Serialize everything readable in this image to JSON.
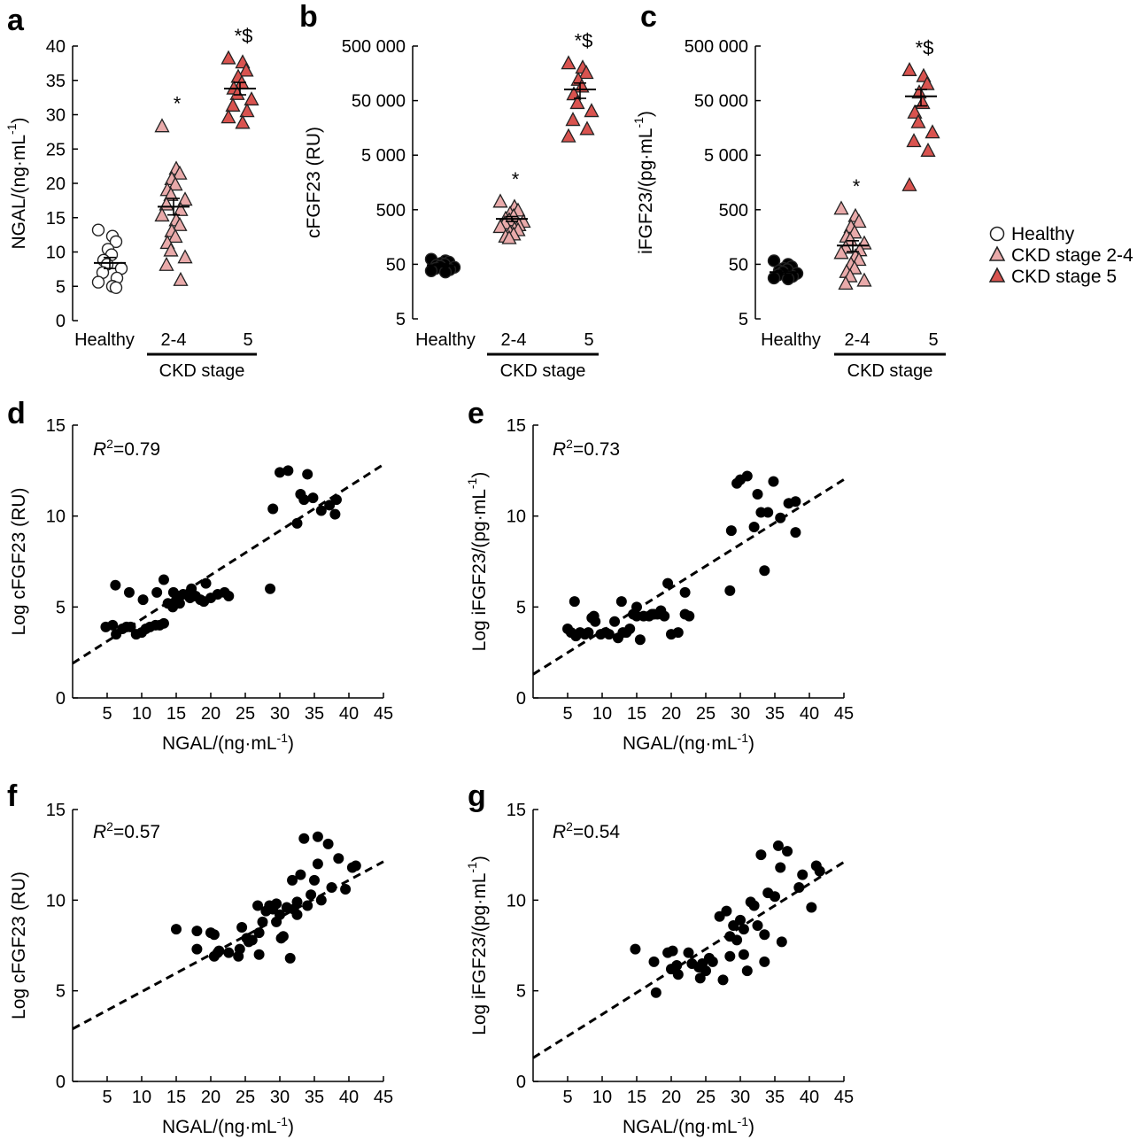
{
  "colors": {
    "healthy_fill": "#ffffff",
    "ckd24_fill": "#e9aaaa",
    "ckd5_fill": "#d9534f",
    "marker_stroke": "#222222",
    "point_fill": "#000000"
  },
  "legend": {
    "entries": [
      "Healthy",
      "CKD stage 2-4",
      "CKD stage 5"
    ]
  },
  "chart_data": [
    {
      "id": "a",
      "type": "scatter",
      "panel_label": "a",
      "ylabel": "NGAL/(ng·mL",
      "ylabel_sup": "-1",
      "ylabel_end": ")",
      "yscale": "linear",
      "ylim": [
        0,
        40
      ],
      "yticks": [
        0,
        5,
        10,
        15,
        20,
        25,
        30,
        35,
        40
      ],
      "ytick_labels": [
        "0",
        "5",
        "10",
        "15",
        "20",
        "25",
        "30",
        "35",
        "40"
      ],
      "categories": [
        "Healthy",
        "2-4",
        "5"
      ],
      "group_label": "CKD stage",
      "groups": [
        {
          "name": "Healthy",
          "marker": "circle",
          "values": [
            13.2,
            12.3,
            11.5,
            10.4,
            9.6,
            8.8,
            8.2,
            7.6,
            7.0,
            6.2,
            5.6,
            5.0,
            4.8
          ],
          "mean": 8.4,
          "sem": 0.8,
          "sig": ""
        },
        {
          "name": "CKD stage 2-4",
          "marker": "triangle",
          "values": [
            28.3,
            22.1,
            21.4,
            20.6,
            19.8,
            19.0,
            18.3,
            17.6,
            16.9,
            16.1,
            15.3,
            14.6,
            13.9,
            13.0,
            12.2,
            11.3,
            10.2,
            9.2,
            8.1,
            5.9
          ],
          "mean": 16.6,
          "sem": 1.2,
          "sig": "*"
        },
        {
          "name": "CKD stage 5",
          "marker": "triangle",
          "values": [
            38.2,
            37.6,
            36.4,
            35.5,
            34.6,
            33.8,
            33.0,
            32.2,
            31.3,
            30.5,
            29.6,
            28.8
          ],
          "mean": 33.8,
          "sem": 0.9,
          "sig": "*$"
        }
      ]
    },
    {
      "id": "b",
      "type": "scatter",
      "panel_label": "b",
      "ylabel": "cFGF23 (RU)",
      "ylabel_sup": "",
      "ylabel_end": "",
      "yscale": "log",
      "ylim": [
        5,
        500000
      ],
      "yticks": [
        5,
        50,
        500,
        5000,
        50000,
        500000
      ],
      "ytick_labels": [
        "5",
        "50",
        "500",
        "5 000",
        "50 000",
        "500 000"
      ],
      "categories": [
        "Healthy",
        "2-4",
        "5"
      ],
      "group_label": "CKD stage",
      "groups": [
        {
          "name": "Healthy",
          "marker": "circle",
          "values": [
            62,
            58,
            55,
            52,
            50,
            48,
            46,
            44,
            42,
            40,
            38,
            36
          ],
          "mean": 48,
          "sem": 3,
          "sig": ""
        },
        {
          "name": "CKD stage 2-4",
          "marker": "triangle",
          "values": [
            700,
            560,
            480,
            420,
            380,
            340,
            320,
            300,
            280,
            260,
            240,
            220,
            210,
            190,
            175,
            160,
            150
          ],
          "mean": 340,
          "sem": 35,
          "sig": "*"
        },
        {
          "name": "CKD stage 5",
          "marker": "triangle",
          "values": [
            240000,
            200000,
            160000,
            120000,
            90000,
            65000,
            45000,
            32000,
            22000,
            15000,
            11000
          ],
          "mean": 80000,
          "sem": 25000,
          "sig": "*$"
        }
      ]
    },
    {
      "id": "c",
      "type": "scatter",
      "panel_label": "c",
      "ylabel": "iFGF23/(pg·mL",
      "ylabel_sup": "-1",
      "ylabel_end": ")",
      "yscale": "log",
      "ylim": [
        5,
        500000
      ],
      "yticks": [
        5,
        50,
        500,
        5000,
        50000,
        500000
      ],
      "ytick_labels": [
        "5",
        "50",
        "500",
        "5 000",
        "50 000",
        "500 000"
      ],
      "categories": [
        "Healthy",
        "2-4",
        "5"
      ],
      "group_label": "CKD stage",
      "groups": [
        {
          "name": "Healthy",
          "marker": "circle",
          "values": [
            58,
            50,
            45,
            42,
            40,
            38,
            36,
            34,
            32,
            30,
            28,
            27
          ],
          "mean": 36,
          "sem": 3,
          "sig": ""
        },
        {
          "name": "CKD stage 2-4",
          "marker": "triangle",
          "values": [
            520,
            380,
            300,
            240,
            190,
            160,
            140,
            120,
            100,
            90,
            80,
            70,
            60,
            50,
            42,
            36,
            30,
            25,
            22
          ],
          "mean": 110,
          "sem": 25,
          "sig": "*"
        },
        {
          "name": "CKD stage 5",
          "marker": "triangle",
          "values": [
            180000,
            140000,
            100000,
            70000,
            45000,
            30000,
            20000,
            13000,
            9000,
            6000,
            1400
          ],
          "mean": 60000,
          "sem": 20000,
          "sig": "*$"
        }
      ]
    },
    {
      "id": "d",
      "type": "scatter",
      "panel_label": "d",
      "xlabel": "NGAL/(ng·mL",
      "xlabel_sup": "-1",
      "xlabel_end": ")",
      "ylabel": "Log cFGF23 (RU)",
      "ylabel_sup": "",
      "ylabel_end": "",
      "xlim": [
        0,
        45
      ],
      "ylim": [
        0,
        15
      ],
      "xticks": [
        5,
        10,
        15,
        20,
        25,
        30,
        35,
        40,
        45
      ],
      "yticks": [
        0,
        5,
        10,
        15
      ],
      "r2_label": "R",
      "r2_value": "=0.79",
      "fit": {
        "intercept": 1.9,
        "slope": 0.243
      },
      "x": [
        4.8,
        5.8,
        6.3,
        7.2,
        7.8,
        8.4,
        9.2,
        10.0,
        10.6,
        11.2,
        12.0,
        12.6,
        13.2,
        13.8,
        14.5,
        14.9,
        15.5,
        16.0,
        17.0,
        17.8,
        18.5,
        19.0,
        20.0,
        21.0,
        22.0,
        22.6,
        6.2,
        8.2,
        10.2,
        12.2,
        13.2,
        14.6,
        15.2,
        17.2,
        19.3,
        28.6,
        29.0,
        30.0,
        31.2,
        32.5,
        33.0,
        33.5,
        34.0,
        34.8,
        36.0,
        37.2,
        38.2,
        38.0
      ],
      "y": [
        3.9,
        4.0,
        3.5,
        3.8,
        3.9,
        3.9,
        3.5,
        3.6,
        3.8,
        3.9,
        4.0,
        4.0,
        4.1,
        5.2,
        5.0,
        5.3,
        5.2,
        5.7,
        5.5,
        5.6,
        5.4,
        5.3,
        5.5,
        5.7,
        5.8,
        5.6,
        6.2,
        5.8,
        5.4,
        5.8,
        6.5,
        5.8,
        5.6,
        6.0,
        6.3,
        6.0,
        10.4,
        12.4,
        12.5,
        9.6,
        11.2,
        10.9,
        12.3,
        11.0,
        10.3,
        10.6,
        10.9,
        10.1
      ]
    },
    {
      "id": "e",
      "type": "scatter",
      "panel_label": "e",
      "xlabel": "NGAL/(ng·mL",
      "xlabel_sup": "-1",
      "xlabel_end": ")",
      "ylabel": "Log iFGF23/(pg·mL",
      "ylabel_sup": "-1",
      "ylabel_end": ")",
      "xlim": [
        0,
        45
      ],
      "ylim": [
        0,
        15
      ],
      "xticks": [
        5,
        10,
        15,
        20,
        25,
        30,
        35,
        40,
        45
      ],
      "yticks": [
        0,
        5,
        10,
        15
      ],
      "r2_label": "R",
      "r2_value": "=0.73",
      "fit": {
        "intercept": 1.3,
        "slope": 0.238
      },
      "x": [
        5.0,
        5.5,
        6.2,
        6.8,
        7.5,
        8.0,
        8.5,
        9.0,
        9.8,
        10.5,
        11.0,
        11.8,
        12.3,
        13.0,
        13.5,
        14.0,
        14.5,
        15.0,
        15.5,
        16.0,
        16.8,
        17.5,
        18.0,
        18.5,
        19.0,
        20.0,
        21.0,
        22.0,
        22.6,
        6.0,
        8.8,
        12.8,
        15.0,
        17.2,
        19.5,
        22.0,
        28.5,
        28.7,
        29.5,
        30.0,
        31.0,
        32.0,
        32.5,
        33.0,
        33.5,
        34.0,
        34.8,
        35.8,
        37.0,
        38.0,
        38.0
      ],
      "y": [
        3.8,
        3.6,
        3.4,
        3.6,
        3.5,
        3.6,
        4.4,
        4.2,
        3.5,
        3.6,
        3.5,
        4.2,
        3.3,
        3.6,
        3.6,
        3.8,
        4.6,
        4.5,
        3.2,
        4.5,
        4.5,
        4.6,
        4.6,
        4.8,
        4.5,
        3.5,
        3.6,
        4.6,
        4.5,
        5.3,
        4.5,
        5.3,
        5.0,
        4.6,
        6.3,
        5.8,
        5.9,
        9.2,
        11.8,
        12.0,
        12.2,
        9.4,
        11.2,
        10.2,
        7.0,
        10.2,
        11.9,
        9.9,
        10.7,
        10.8,
        9.1
      ]
    },
    {
      "id": "f",
      "type": "scatter",
      "panel_label": "f",
      "xlabel": "NGAL/(ng·mL",
      "xlabel_sup": "-1",
      "xlabel_end": ")",
      "ylabel": "Log cFGF23 (RU)",
      "ylabel_sup": "",
      "ylabel_end": "",
      "xlim": [
        0,
        45
      ],
      "ylim": [
        0,
        15
      ],
      "xticks": [
        5,
        10,
        15,
        20,
        25,
        30,
        35,
        40,
        45
      ],
      "yticks": [
        0,
        5,
        10,
        15
      ],
      "r2_label": "R",
      "r2_value": "=0.57",
      "fit": {
        "intercept": 2.9,
        "slope": 0.205
      },
      "x": [
        15.0,
        18.0,
        18.0,
        20.0,
        20.5,
        20.5,
        21.0,
        21.2,
        22.6,
        24.0,
        24.2,
        24.5,
        25.2,
        25.5,
        26.0,
        26.8,
        27.0,
        27.5,
        28.0,
        28.5,
        29.0,
        29.5,
        30.0,
        30.2,
        30.5,
        31.0,
        31.5,
        31.8,
        32.0,
        32.5,
        33.0,
        33.5,
        34.0,
        34.5,
        35.0,
        35.5,
        35.5,
        36.0,
        37.0,
        37.5,
        38.5,
        39.5,
        40.5,
        41.0,
        27.0,
        29.5,
        32.5
      ],
      "y": [
        8.4,
        8.3,
        7.3,
        8.2,
        6.9,
        8.1,
        7.1,
        7.2,
        7.1,
        6.9,
        7.3,
        8.5,
        7.9,
        7.7,
        7.8,
        9.7,
        7.0,
        8.8,
        9.4,
        9.7,
        9.5,
        9.8,
        9.2,
        7.9,
        8.0,
        9.6,
        6.8,
        11.1,
        9.5,
        9.2,
        11.4,
        13.4,
        9.7,
        10.3,
        11.1,
        13.5,
        12.0,
        10.0,
        13.1,
        10.7,
        12.3,
        10.6,
        11.8,
        11.9,
        8.2,
        8.8,
        9.9
      ]
    },
    {
      "id": "g",
      "type": "scatter",
      "panel_label": "g",
      "xlabel": "NGAL/(ng·mL",
      "xlabel_sup": "-1",
      "xlabel_end": ")",
      "ylabel": "Log iFGF23/(pg·mL",
      "ylabel_sup": "-1",
      "ylabel_end": ")",
      "xlim": [
        0,
        45
      ],
      "ylim": [
        0,
        15
      ],
      "xticks": [
        5,
        10,
        15,
        20,
        25,
        30,
        35,
        40,
        45
      ],
      "yticks": [
        0,
        5,
        10,
        15
      ],
      "r2_label": "R",
      "r2_value": "=0.54",
      "fit": {
        "intercept": 1.3,
        "slope": 0.24
      },
      "x": [
        14.8,
        17.5,
        17.8,
        19.5,
        20.0,
        20.2,
        21.0,
        22.5,
        23.0,
        24.2,
        24.5,
        25.0,
        25.5,
        26.0,
        27.0,
        27.5,
        28.0,
        28.5,
        29.0,
        29.5,
        30.0,
        30.5,
        31.0,
        31.5,
        32.0,
        32.5,
        33.0,
        33.5,
        34.0,
        35.0,
        35.5,
        35.8,
        36.0,
        36.8,
        38.5,
        39.0,
        40.3,
        41.0,
        41.5,
        20.8,
        24.0,
        28.5,
        30.5,
        33.5
      ],
      "y": [
        7.3,
        6.6,
        4.9,
        7.1,
        6.2,
        7.2,
        5.9,
        7.1,
        6.5,
        5.7,
        6.5,
        6.1,
        6.8,
        6.6,
        9.1,
        5.6,
        9.4,
        6.9,
        8.6,
        7.8,
        8.9,
        7.0,
        6.1,
        9.9,
        9.7,
        8.6,
        12.5,
        6.6,
        10.4,
        10.2,
        13.0,
        11.8,
        7.7,
        12.7,
        10.7,
        11.4,
        9.6,
        11.9,
        11.6,
        6.4,
        6.3,
        8.0,
        8.4,
        8.1
      ]
    }
  ]
}
